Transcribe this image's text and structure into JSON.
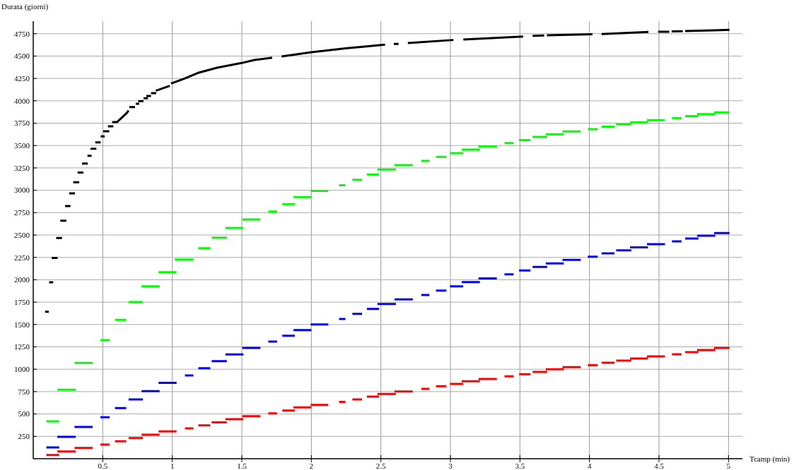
{
  "chart_data": {
    "type": "line",
    "xlabel": "Tcamp (min)",
    "ylabel": "Durata (giorni)",
    "xlim": [
      0,
      5.1
    ],
    "ylim": [
      0,
      4890
    ],
    "xticks": [
      0.5,
      1,
      1.5,
      2,
      2.5,
      3,
      3.5,
      4,
      4.5,
      5
    ],
    "yticks": [
      250,
      500,
      750,
      1000,
      1250,
      1500,
      1750,
      2000,
      2250,
      2500,
      2750,
      3000,
      3250,
      3500,
      3750,
      4000,
      4250,
      4500,
      4750
    ],
    "grid": true,
    "series": [
      {
        "color": "#000000",
        "x": [
          0.085,
          0.112,
          null,
          0.114,
          0.144,
          null,
          0.133,
          0.175,
          null,
          0.165,
          0.207,
          null,
          0.195,
          0.238,
          null,
          0.229,
          0.268,
          null,
          0.258,
          0.3,
          null,
          0.288,
          0.331,
          null,
          0.319,
          0.361,
          null,
          0.351,
          0.392,
          null,
          0.39,
          0.42,
          null,
          0.412,
          0.454,
          null,
          0.446,
          0.485,
          null,
          0.485,
          0.514,
          null,
          0.503,
          0.547,
          null,
          0.537,
          0.576,
          null,
          0.568,
          0.602,
          0.669,
          0.686,
          null,
          0.691,
          0.732,
          null,
          0.737,
          0.762,
          null,
          0.755,
          0.793,
          null,
          0.793,
          0.825,
          null,
          0.813,
          0.847,
          null,
          0.847,
          0.884,
          null,
          0.881,
          0.982,
          null,
          0.991,
          1.084,
          1.185,
          1.321,
          1.497,
          1.591,
          1.718,
          null,
          1.786,
          2.0,
          2.258,
          2.53,
          null,
          2.593,
          2.627,
          null,
          2.694,
          3.022,
          null,
          3.093,
          3.523,
          null,
          3.591,
          3.674,
          null,
          3.694,
          4.022,
          null,
          4.087,
          4.424,
          null,
          4.494,
          4.574,
          null,
          4.591,
          4.671,
          null,
          4.688,
          5.007
        ],
        "values": [
          1643,
          1643,
          null,
          1972,
          1972,
          null,
          2243,
          2243,
          null,
          2466,
          2466,
          null,
          2660,
          2660,
          null,
          2824,
          2824,
          null,
          2966,
          2966,
          null,
          3089,
          3089,
          null,
          3199,
          3199,
          null,
          3299,
          3299,
          null,
          3386,
          3386,
          null,
          3465,
          3465,
          null,
          3536,
          3536,
          null,
          3602,
          3602,
          null,
          3660,
          3660,
          null,
          3715,
          3715,
          null,
          3762,
          3762,
          3857,
          3891,
          null,
          3930,
          3930,
          null,
          3967,
          3967,
          null,
          3996,
          3996,
          null,
          4028,
          4028,
          null,
          4054,
          4054,
          null,
          4085,
          4085,
          null,
          4112,
          4167,
          null,
          4193,
          4246,
          4312,
          4369,
          4422,
          4456,
          4482,
          null,
          4496,
          4543,
          4588,
          4627,
          null,
          4635,
          4635,
          null,
          4645,
          4680,
          null,
          4685,
          4719,
          null,
          4727,
          4730,
          null,
          4732,
          4745,
          null,
          4747,
          4769,
          null,
          4771,
          4772,
          null,
          4775,
          4777,
          null,
          4779,
          4793
        ]
      },
      {
        "color": "#00ff00",
        "x": [
          0.094,
          0.187,
          null,
          0.173,
          0.305,
          null,
          0.297,
          0.427,
          null,
          0.483,
          0.549,
          null,
          0.588,
          0.669,
          null,
          0.686,
          0.789,
          null,
          0.779,
          0.909,
          null,
          0.901,
          1.031,
          null,
          1.018,
          1.152,
          null,
          1.187,
          1.273,
          null,
          1.283,
          1.392,
          null,
          1.382,
          1.512,
          null,
          1.503,
          1.634,
          null,
          1.69,
          1.754,
          null,
          1.791,
          1.881,
          null,
          1.871,
          2.0,
          null,
          1.995,
          2.122,
          null,
          2.199,
          2.245,
          null,
          2.295,
          2.365,
          null,
          2.399,
          2.487,
          null,
          2.475,
          2.608,
          null,
          2.598,
          2.73,
          null,
          2.791,
          2.849,
          null,
          2.896,
          2.971,
          null,
          2.997,
          3.092,
          null,
          3.081,
          3.212,
          null,
          3.202,
          3.334,
          null,
          3.389,
          3.455,
          null,
          3.494,
          3.576,
          null,
          3.591,
          3.696,
          null,
          3.686,
          3.815,
          null,
          3.806,
          3.937,
          null,
          3.988,
          4.059,
          null,
          4.087,
          4.18,
          null,
          4.192,
          4.301,
          null,
          4.292,
          4.421,
          null,
          4.413,
          4.543,
          null,
          4.593,
          4.662,
          null,
          4.688,
          4.784,
          null,
          4.774,
          4.905,
          null,
          4.896,
          5.007
        ],
        "values": [
          418,
          418,
          null,
          770,
          770,
          null,
          1070,
          1070,
          null,
          1325,
          1325,
          null,
          1551,
          1551,
          null,
          1751,
          1751,
          null,
          1927,
          1927,
          null,
          2085,
          2085,
          null,
          2227,
          2227,
          null,
          2353,
          2353,
          null,
          2471,
          2471,
          null,
          2580,
          2580,
          null,
          2674,
          2674,
          null,
          2763,
          2763,
          null,
          2845,
          2845,
          null,
          2924,
          2924,
          null,
          2994,
          2994,
          null,
          3057,
          3057,
          null,
          3118,
          3118,
          null,
          3176,
          3176,
          null,
          3231,
          3231,
          null,
          3281,
          3281,
          null,
          3328,
          3328,
          null,
          3373,
          3373,
          null,
          3415,
          3415,
          null,
          3454,
          3454,
          null,
          3491,
          3491,
          null,
          3528,
          3528,
          null,
          3562,
          3562,
          null,
          3597,
          3597,
          null,
          3626,
          3626,
          null,
          3658,
          3658,
          null,
          3684,
          3684,
          null,
          3710,
          3710,
          null,
          3736,
          3736,
          null,
          3760,
          3760,
          null,
          3783,
          3783,
          null,
          3807,
          3807,
          null,
          3829,
          3829,
          null,
          3850,
          3850,
          null,
          3871,
          3871
        ]
      },
      {
        "color": "#0000ff",
        "x": [
          0.094,
          0.187,
          null,
          0.173,
          0.305,
          null,
          0.297,
          0.427,
          null,
          0.483,
          0.549,
          null,
          0.588,
          0.669,
          null,
          0.686,
          0.789,
          null,
          0.779,
          0.909,
          null,
          0.901,
          1.031,
          null,
          1.091,
          1.152,
          null,
          1.187,
          1.273,
          null,
          1.283,
          1.392,
          null,
          1.382,
          1.512,
          null,
          1.503,
          1.634,
          null,
          1.69,
          1.754,
          null,
          1.791,
          1.881,
          null,
          1.871,
          2.0,
          null,
          1.995,
          2.122,
          null,
          2.199,
          2.245,
          null,
          2.295,
          2.365,
          null,
          2.399,
          2.487,
          null,
          2.475,
          2.608,
          null,
          2.598,
          2.73,
          null,
          2.791,
          2.849,
          null,
          2.896,
          2.971,
          null,
          2.997,
          3.092,
          null,
          3.081,
          3.212,
          null,
          3.202,
          3.334,
          null,
          3.389,
          3.455,
          null,
          3.494,
          3.576,
          null,
          3.591,
          3.696,
          null,
          3.686,
          3.815,
          null,
          3.806,
          3.937,
          null,
          3.988,
          4.059,
          null,
          4.087,
          4.18,
          null,
          4.192,
          4.301,
          null,
          4.292,
          4.421,
          null,
          4.413,
          4.543,
          null,
          4.593,
          4.662,
          null,
          4.688,
          4.784,
          null,
          4.774,
          4.905,
          null,
          4.896,
          5.007
        ],
        "values": [
          126,
          126,
          null,
          245,
          245,
          null,
          355,
          355,
          null,
          463,
          463,
          null,
          565,
          565,
          null,
          663,
          663,
          null,
          755,
          755,
          null,
          847,
          847,
          null,
          931,
          931,
          null,
          1012,
          1012,
          null,
          1091,
          1091,
          null,
          1165,
          1165,
          null,
          1238,
          1238,
          null,
          1309,
          1309,
          null,
          1375,
          1375,
          null,
          1438,
          1438,
          null,
          1501,
          1501,
          null,
          1562,
          1562,
          null,
          1619,
          1619,
          null,
          1675,
          1675,
          null,
          1730,
          1730,
          null,
          1780,
          1780,
          null,
          1830,
          1830,
          null,
          1880,
          1880,
          null,
          1927,
          1927,
          null,
          1974,
          1974,
          null,
          2016,
          2016,
          null,
          2061,
          2061,
          null,
          2103,
          2103,
          null,
          2143,
          2143,
          null,
          2182,
          2182,
          null,
          2222,
          2222,
          null,
          2258,
          2258,
          null,
          2295,
          2295,
          null,
          2329,
          2329,
          null,
          2363,
          2363,
          null,
          2398,
          2398,
          null,
          2429,
          2429,
          null,
          2461,
          2461,
          null,
          2492,
          2492,
          null,
          2521,
          2521
        ]
      },
      {
        "color": "#ff0000",
        "x": [
          0.094,
          0.187,
          null,
          0.173,
          0.305,
          null,
          0.297,
          0.427,
          null,
          0.483,
          0.549,
          null,
          0.588,
          0.669,
          null,
          0.686,
          0.789,
          null,
          0.779,
          0.909,
          null,
          0.901,
          1.031,
          null,
          1.091,
          1.152,
          null,
          1.187,
          1.273,
          null,
          1.283,
          1.392,
          null,
          1.382,
          1.512,
          null,
          1.503,
          1.634,
          null,
          1.69,
          1.754,
          null,
          1.791,
          1.881,
          null,
          1.871,
          2.0,
          null,
          1.995,
          2.122,
          null,
          2.199,
          2.245,
          null,
          2.295,
          2.365,
          null,
          2.399,
          2.487,
          null,
          2.475,
          2.608,
          null,
          2.598,
          2.73,
          null,
          2.791,
          2.849,
          null,
          2.896,
          2.971,
          null,
          2.997,
          3.092,
          null,
          3.081,
          3.212,
          null,
          3.202,
          3.334,
          null,
          3.389,
          3.455,
          null,
          3.494,
          3.576,
          null,
          3.591,
          3.696,
          null,
          3.686,
          3.815,
          null,
          3.806,
          3.937,
          null,
          3.988,
          4.059,
          null,
          4.087,
          4.18,
          null,
          4.192,
          4.301,
          null,
          4.292,
          4.421,
          null,
          4.413,
          4.543,
          null,
          4.593,
          4.662,
          null,
          4.688,
          4.784,
          null,
          4.774,
          4.905,
          null,
          4.896,
          5.007
        ],
        "values": [
          42,
          42,
          null,
          81,
          81,
          null,
          121,
          121,
          null,
          158,
          158,
          null,
          195,
          195,
          null,
          231,
          231,
          null,
          268,
          268,
          null,
          305,
          305,
          null,
          339,
          339,
          null,
          373,
          373,
          null,
          407,
          407,
          null,
          442,
          442,
          null,
          476,
          476,
          null,
          507,
          507,
          null,
          539,
          539,
          null,
          573,
          573,
          null,
          602,
          602,
          null,
          634,
          634,
          null,
          662,
          662,
          null,
          694,
          694,
          null,
          723,
          723,
          null,
          752,
          752,
          null,
          781,
          781,
          null,
          810,
          810,
          null,
          836,
          836,
          null,
          865,
          865,
          null,
          891,
          891,
          null,
          920,
          920,
          null,
          944,
          944,
          null,
          970,
          970,
          null,
          999,
          999,
          null,
          1023,
          1023,
          null,
          1046,
          1046,
          null,
          1073,
          1073,
          null,
          1096,
          1096,
          null,
          1120,
          1120,
          null,
          1144,
          1144,
          null,
          1167,
          1167,
          null,
          1191,
          1191,
          null,
          1215,
          1215,
          null,
          1238,
          1238
        ]
      }
    ]
  }
}
